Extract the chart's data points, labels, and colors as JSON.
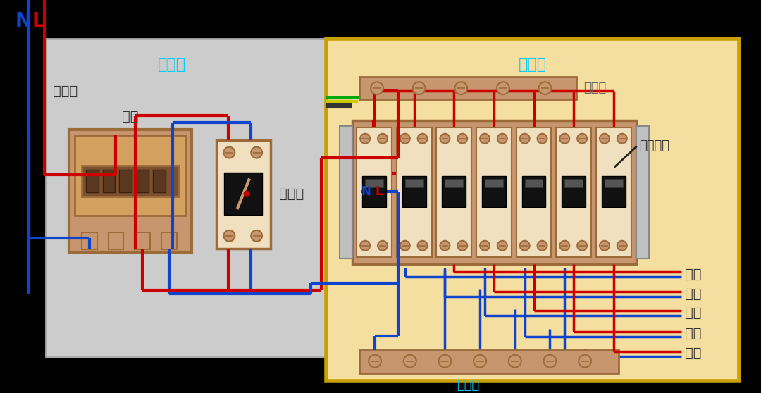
{
  "bg_color": "#000000",
  "meter_box_bg": "#cccccc",
  "dist_box_bg": "#f5dfa0",
  "dist_box_border": "#c8a000",
  "brown": "#9b6b3a",
  "brown_light": "#c8966e",
  "breaker_face": "#f0e0c0",
  "red_wire": "#cc0000",
  "blue_wire": "#1144cc",
  "green_wire": "#00aa00",
  "yellow_wire": "#cccc00",
  "cyan_label": "#00ccff",
  "black_sw": "#111111",
  "gray_cap": "#c0c0c0",
  "title_left": "电表筱",
  "title_right": "配电筱",
  "label_inlet": "进户线",
  "label_meter": "电表",
  "label_main_sw": "总开关",
  "label_earth": "接地排",
  "label_air_sw": "空气开关",
  "label_neutral": "零线排",
  "label_lighting": "照明",
  "label_socket": "插座",
  "label_ac": "空调",
  "label_jia": "家用",
  "label_dianqi": "电器",
  "label_N": "N",
  "label_L": "L"
}
